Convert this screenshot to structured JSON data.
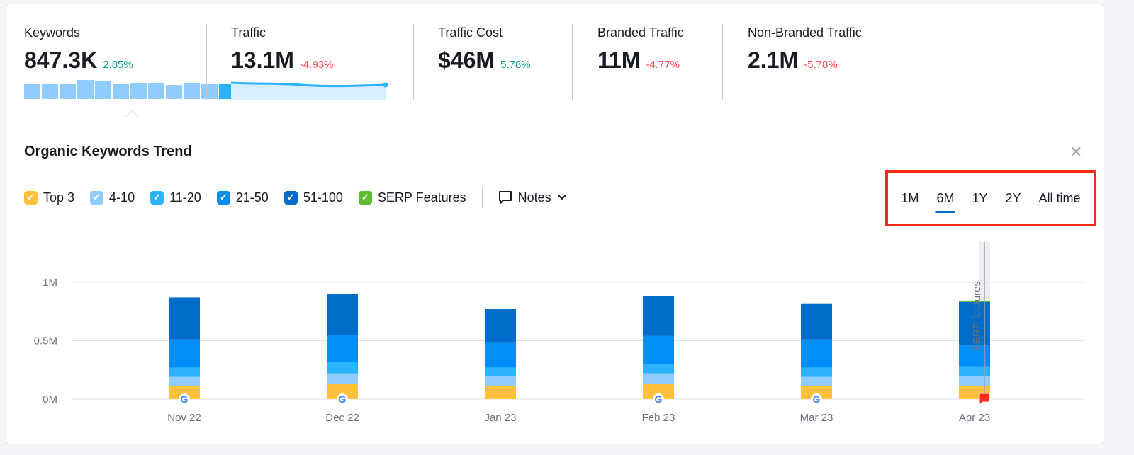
{
  "metrics": [
    {
      "label": "Keywords",
      "value": "847.3K",
      "change": "2.85%",
      "trend": "up",
      "spark_bars": [
        0.75,
        0.75,
        0.75,
        0.95,
        0.9,
        0.75,
        0.78,
        0.8,
        0.7,
        0.8,
        0.75,
        0.75
      ]
    },
    {
      "label": "Traffic",
      "value": "13.1M",
      "change": "-4.93%",
      "trend": "down"
    },
    {
      "label": "Traffic Cost",
      "value": "$46M",
      "change": "5.78%",
      "trend": "up"
    },
    {
      "label": "Branded Traffic",
      "value": "11M",
      "change": "-4.77%",
      "trend": "down"
    },
    {
      "label": "Non-Branded Traffic",
      "value": "2.1M",
      "change": "-5.78%",
      "trend": "down"
    }
  ],
  "panel": {
    "title": "Organic Keywords Trend",
    "close_icon": "close-icon"
  },
  "legend": [
    {
      "label": "Top 3",
      "color": "#ffc13d"
    },
    {
      "label": "4-10",
      "color": "#8fcbff"
    },
    {
      "label": "11-20",
      "color": "#2bb3ff"
    },
    {
      "label": "21-50",
      "color": "#008ff8"
    },
    {
      "label": "51-100",
      "color": "#006dca"
    },
    {
      "label": "SERP Features",
      "color": "#5ebd2e"
    }
  ],
  "notes_label": "Notes",
  "ranges": [
    {
      "label": "1M"
    },
    {
      "label": "6M",
      "active": true
    },
    {
      "label": "1Y"
    },
    {
      "label": "2Y"
    },
    {
      "label": "All time"
    }
  ],
  "chart_data": {
    "type": "bar",
    "stacked": true,
    "categories": [
      "Nov 22",
      "Dec 22",
      "Jan 23",
      "Feb 23",
      "Mar 23",
      "Apr 23"
    ],
    "ylim": [
      0,
      1000000
    ],
    "yticks": [
      {
        "v": 0,
        "label": "0M"
      },
      {
        "v": 500000,
        "label": "0.5M"
      },
      {
        "v": 1000000,
        "label": "1M"
      }
    ],
    "grid": true,
    "series": [
      {
        "name": "Top 3",
        "color": "#ffc13d",
        "values": [
          110000,
          130000,
          115000,
          130000,
          115000,
          115000
        ]
      },
      {
        "name": "4-10",
        "color": "#8fcbff",
        "values": [
          80000,
          90000,
          85000,
          90000,
          75000,
          80000
        ]
      },
      {
        "name": "11-20",
        "color": "#2bb3ff",
        "values": [
          80000,
          100000,
          70000,
          80000,
          80000,
          85000
        ]
      },
      {
        "name": "21-50",
        "color": "#008ff8",
        "values": [
          240000,
          230000,
          210000,
          240000,
          240000,
          180000
        ]
      },
      {
        "name": "51-100",
        "color": "#006dca",
        "values": [
          360000,
          350000,
          290000,
          340000,
          310000,
          380000
        ]
      },
      {
        "name": "SERP Features",
        "color": "#5ebd2e",
        "values": [
          0,
          0,
          0,
          0,
          0,
          3000
        ]
      }
    ],
    "markers": [
      "google-icon",
      "google-icon",
      null,
      "google-icon",
      "google-icon",
      "flag-icon"
    ],
    "annotation": {
      "category": "Apr 23",
      "label": "SERP features"
    }
  }
}
